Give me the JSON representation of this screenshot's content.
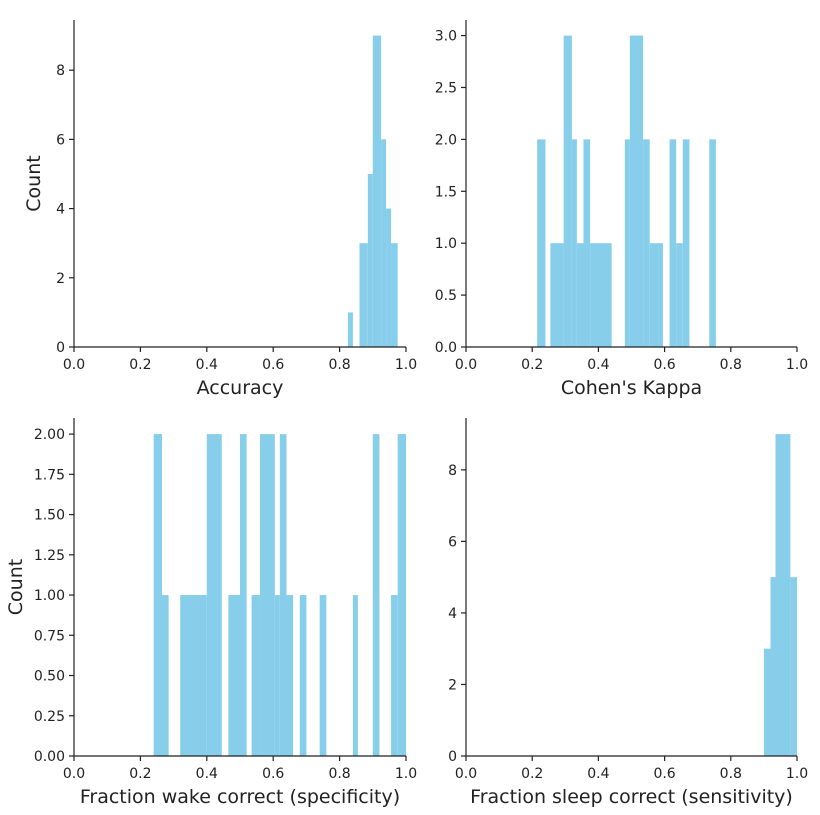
{
  "colors": {
    "bar": "#87CEEB",
    "axis": "#222222",
    "background": "#ffffff"
  },
  "chart_data": [
    {
      "type": "bar",
      "title": "",
      "xlabel": "Accuracy",
      "ylabel": "Count",
      "xlim": [
        0.0,
        1.0
      ],
      "ylim": [
        0,
        9.45
      ],
      "xticks": [
        0.0,
        0.2,
        0.4,
        0.6,
        0.8,
        1.0
      ],
      "xtick_labels": [
        "0.0",
        "0.2",
        "0.4",
        "0.6",
        "0.8",
        "1.0"
      ],
      "yticks": [
        0,
        2,
        4,
        6,
        8
      ],
      "ytick_labels": [
        "0",
        "2",
        "4",
        "6",
        "8"
      ],
      "bins": [
        {
          "x0": 0.825,
          "x1": 0.84,
          "count": 1
        },
        {
          "x0": 0.86,
          "x1": 0.885,
          "count": 3
        },
        {
          "x0": 0.885,
          "x1": 0.9,
          "count": 5
        },
        {
          "x0": 0.9,
          "x1": 0.925,
          "count": 9
        },
        {
          "x0": 0.925,
          "x1": 0.94,
          "count": 6
        },
        {
          "x0": 0.94,
          "x1": 0.955,
          "count": 4
        },
        {
          "x0": 0.955,
          "x1": 0.975,
          "count": 3
        }
      ]
    },
    {
      "type": "bar",
      "title": "",
      "xlabel": "Cohen's Kappa",
      "ylabel": "",
      "xlim": [
        0.0,
        1.0
      ],
      "ylim": [
        0,
        3.15
      ],
      "xticks": [
        0.0,
        0.2,
        0.4,
        0.6,
        0.8,
        1.0
      ],
      "xtick_labels": [
        "0.0",
        "0.2",
        "0.4",
        "0.6",
        "0.8",
        "1.0"
      ],
      "yticks": [
        0.0,
        0.5,
        1.0,
        1.5,
        2.0,
        2.5,
        3.0
      ],
      "ytick_labels": [
        "0.0",
        "0.5",
        "1.0",
        "1.5",
        "2.0",
        "2.5",
        "3.0"
      ],
      "bins": [
        {
          "x0": 0.215,
          "x1": 0.24,
          "count": 2
        },
        {
          "x0": 0.255,
          "x1": 0.295,
          "count": 1
        },
        {
          "x0": 0.295,
          "x1": 0.32,
          "count": 3
        },
        {
          "x0": 0.32,
          "x1": 0.335,
          "count": 2
        },
        {
          "x0": 0.335,
          "x1": 0.355,
          "count": 1
        },
        {
          "x0": 0.355,
          "x1": 0.375,
          "count": 2
        },
        {
          "x0": 0.375,
          "x1": 0.44,
          "count": 1
        },
        {
          "x0": 0.48,
          "x1": 0.495,
          "count": 2
        },
        {
          "x0": 0.495,
          "x1": 0.535,
          "count": 3
        },
        {
          "x0": 0.535,
          "x1": 0.555,
          "count": 2
        },
        {
          "x0": 0.555,
          "x1": 0.595,
          "count": 1
        },
        {
          "x0": 0.615,
          "x1": 0.635,
          "count": 2
        },
        {
          "x0": 0.635,
          "x1": 0.655,
          "count": 1
        },
        {
          "x0": 0.655,
          "x1": 0.675,
          "count": 2
        },
        {
          "x0": 0.735,
          "x1": 0.755,
          "count": 2
        }
      ]
    },
    {
      "type": "bar",
      "title": "",
      "xlabel": "Fraction wake correct (specificity)",
      "ylabel": "Count",
      "xlim": [
        0.0,
        1.0
      ],
      "ylim": [
        0,
        2.1
      ],
      "xticks": [
        0.0,
        0.2,
        0.4,
        0.6,
        0.8,
        1.0
      ],
      "xtick_labels": [
        "0.0",
        "0.2",
        "0.4",
        "0.6",
        "0.8",
        "1.0"
      ],
      "yticks": [
        0.0,
        0.25,
        0.5,
        0.75,
        1.0,
        1.25,
        1.5,
        1.75,
        2.0
      ],
      "ytick_labels": [
        "0.00",
        "0.25",
        "0.50",
        "0.75",
        "1.00",
        "1.25",
        "1.50",
        "1.75",
        "2.00"
      ],
      "bins": [
        {
          "x0": 0.24,
          "x1": 0.265,
          "count": 2
        },
        {
          "x0": 0.265,
          "x1": 0.285,
          "count": 1
        },
        {
          "x0": 0.32,
          "x1": 0.4,
          "count": 1
        },
        {
          "x0": 0.4,
          "x1": 0.445,
          "count": 2
        },
        {
          "x0": 0.465,
          "x1": 0.5,
          "count": 1
        },
        {
          "x0": 0.5,
          "x1": 0.52,
          "count": 2
        },
        {
          "x0": 0.535,
          "x1": 0.56,
          "count": 1
        },
        {
          "x0": 0.56,
          "x1": 0.605,
          "count": 2
        },
        {
          "x0": 0.605,
          "x1": 0.62,
          "count": 1
        },
        {
          "x0": 0.62,
          "x1": 0.64,
          "count": 2
        },
        {
          "x0": 0.64,
          "x1": 0.66,
          "count": 1
        },
        {
          "x0": 0.68,
          "x1": 0.7,
          "count": 1
        },
        {
          "x0": 0.74,
          "x1": 0.76,
          "count": 1
        },
        {
          "x0": 0.84,
          "x1": 0.855,
          "count": 1
        },
        {
          "x0": 0.9,
          "x1": 0.92,
          "count": 2
        },
        {
          "x0": 0.955,
          "x1": 0.975,
          "count": 1
        },
        {
          "x0": 0.975,
          "x1": 1.0,
          "count": 2
        }
      ]
    },
    {
      "type": "bar",
      "title": "",
      "xlabel": "Fraction sleep correct (sensitivity)",
      "ylabel": "",
      "xlim": [
        0.0,
        1.0
      ],
      "ylim": [
        0,
        9.45
      ],
      "xticks": [
        0.0,
        0.2,
        0.4,
        0.6,
        0.8,
        1.0
      ],
      "xtick_labels": [
        "0.0",
        "0.2",
        "0.4",
        "0.6",
        "0.8",
        "1.0"
      ],
      "yticks": [
        0,
        2,
        4,
        6,
        8
      ],
      "ytick_labels": [
        "0",
        "2",
        "4",
        "6",
        "8"
      ],
      "bins": [
        {
          "x0": 0.9,
          "x1": 0.92,
          "count": 3
        },
        {
          "x0": 0.92,
          "x1": 0.935,
          "count": 5
        },
        {
          "x0": 0.935,
          "x1": 0.98,
          "count": 9
        },
        {
          "x0": 0.98,
          "x1": 1.0,
          "count": 5
        }
      ]
    }
  ]
}
